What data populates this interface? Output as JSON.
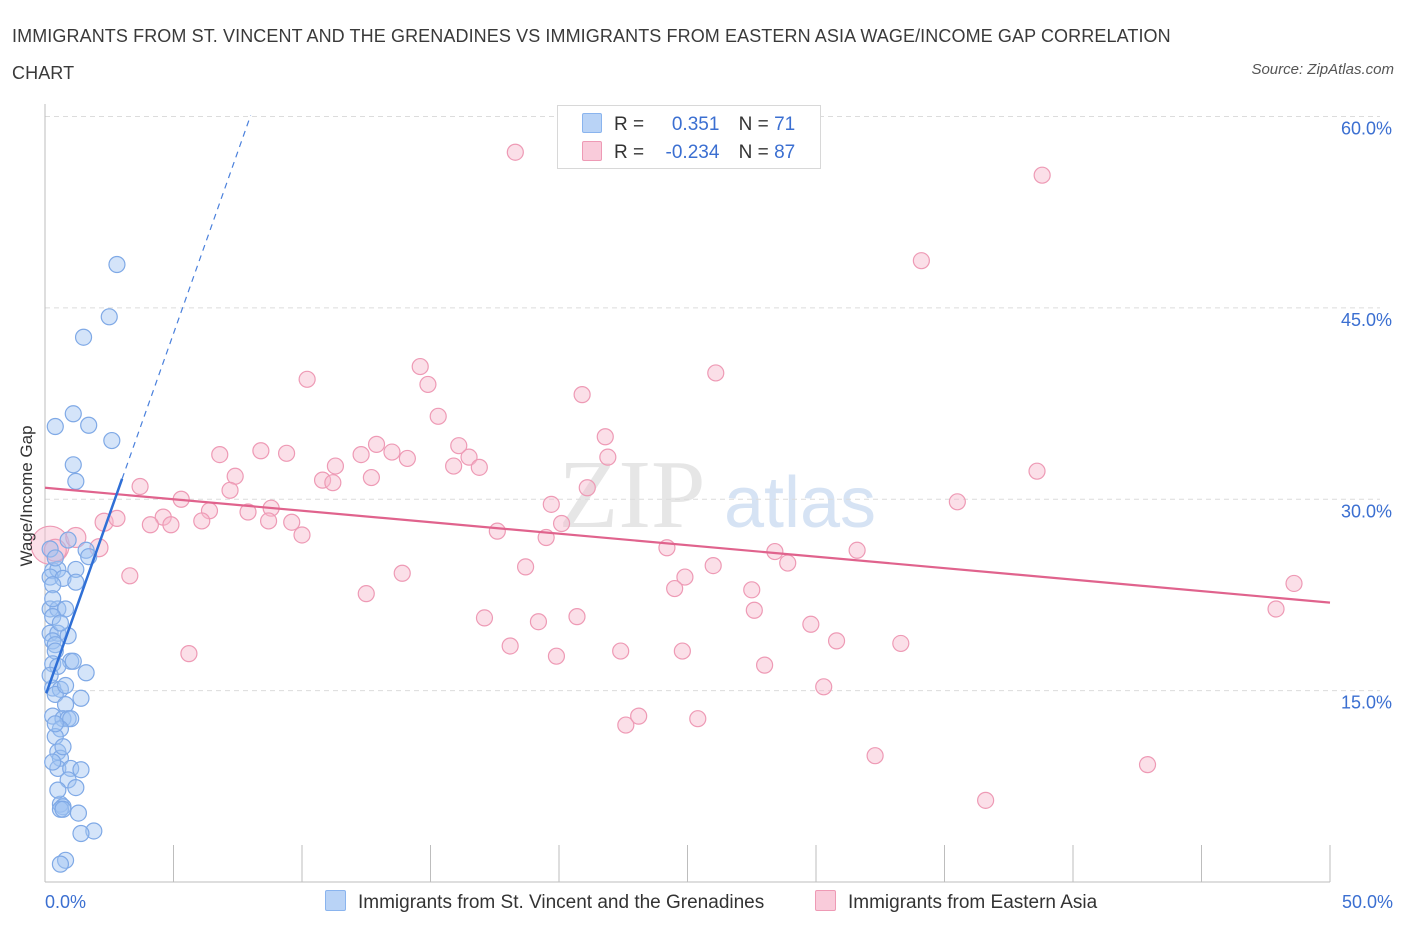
{
  "title": "IMMIGRANTS FROM ST. VINCENT AND THE GRENADINES VS IMMIGRANTS FROM EASTERN ASIA WAGE/INCOME GAP CORRELATION CHART",
  "source": "Source: ZipAtlas.com",
  "watermark": {
    "zip": "ZIP",
    "atlas": "atlas"
  },
  "colors": {
    "blue": "#8ab4ee",
    "blue_line": "#2f6fd6",
    "blue_fill": "#b9d3f6",
    "pink": "#ee9ab5",
    "pink_line": "#e0638d",
    "pink_fill": "#f9cbda",
    "accent_text": "#3b6fd1",
    "grid": "#dcdcdc"
  },
  "legend": {
    "rows": [
      {
        "r_label": "R =",
        "r_value": "0.351",
        "n_label": "N =",
        "n_value": "71"
      },
      {
        "r_label": "R =",
        "r_value": "-0.234",
        "n_label": "N =",
        "n_value": "87"
      }
    ]
  },
  "bottom_legend": {
    "series1": "Immigrants from St. Vincent and the Grenadines",
    "series2": "Immigrants from Eastern Asia"
  },
  "chart_data": {
    "type": "scatter",
    "title": "IMMIGRANTS FROM ST. VINCENT AND THE GRENADINES VS IMMIGRANTS FROM EASTERN ASIA WAGE/INCOME GAP CORRELATION CHART",
    "xlabel": "",
    "ylabel": "Wage/Income Gap",
    "xlim": [
      0,
      50
    ],
    "ylim": [
      0,
      60
    ],
    "x_tick_labels": [
      "0.0%",
      "50.0%"
    ],
    "y_ticks": [
      15,
      30,
      45,
      60
    ],
    "y_tick_labels": [
      "15.0%",
      "30.0%",
      "45.0%",
      "60.0%"
    ],
    "grid": true,
    "series": [
      {
        "name": "Immigrants from St. Vincent and the Grenadines",
        "color": "#8ab4ee",
        "trend": {
          "x1": 0.05,
          "y1": 14.8,
          "x2": 3.0,
          "y2": 31.6,
          "dash_to_x": 8.0
        },
        "points": [
          [
            2.8,
            48.4
          ],
          [
            2.5,
            44.3
          ],
          [
            1.5,
            42.7
          ],
          [
            1.1,
            36.7
          ],
          [
            0.4,
            35.7
          ],
          [
            1.7,
            35.8
          ],
          [
            2.6,
            34.6
          ],
          [
            1.1,
            32.7
          ],
          [
            1.2,
            31.4
          ],
          [
            1.6,
            26.0
          ],
          [
            1.7,
            25.5
          ],
          [
            0.3,
            24.4
          ],
          [
            0.5,
            24.5
          ],
          [
            1.2,
            24.5
          ],
          [
            0.2,
            23.9
          ],
          [
            0.7,
            23.8
          ],
          [
            1.2,
            23.5
          ],
          [
            0.3,
            23.3
          ],
          [
            0.2,
            21.4
          ],
          [
            0.5,
            21.4
          ],
          [
            0.8,
            21.4
          ],
          [
            0.3,
            20.8
          ],
          [
            0.2,
            19.5
          ],
          [
            0.5,
            19.5
          ],
          [
            0.9,
            19.3
          ],
          [
            0.3,
            18.9
          ],
          [
            0.4,
            18.6
          ],
          [
            0.4,
            18.1
          ],
          [
            0.3,
            17.1
          ],
          [
            1.0,
            17.3
          ],
          [
            1.1,
            17.3
          ],
          [
            0.5,
            16.9
          ],
          [
            1.6,
            16.4
          ],
          [
            0.3,
            15.2
          ],
          [
            0.6,
            15.1
          ],
          [
            0.4,
            14.7
          ],
          [
            1.4,
            14.4
          ],
          [
            0.8,
            13.9
          ],
          [
            0.3,
            13.0
          ],
          [
            0.7,
            12.8
          ],
          [
            0.9,
            12.8
          ],
          [
            1.0,
            12.8
          ],
          [
            0.6,
            12.0
          ],
          [
            0.4,
            11.4
          ],
          [
            0.5,
            10.2
          ],
          [
            0.6,
            9.7
          ],
          [
            0.5,
            8.9
          ],
          [
            1.0,
            8.9
          ],
          [
            1.4,
            8.8
          ],
          [
            0.9,
            8.0
          ],
          [
            0.6,
            6.1
          ],
          [
            0.7,
            5.9
          ],
          [
            0.6,
            5.7
          ],
          [
            0.7,
            5.7
          ],
          [
            1.3,
            5.4
          ],
          [
            1.9,
            4.0
          ],
          [
            1.4,
            3.8
          ],
          [
            0.8,
            1.7
          ],
          [
            0.6,
            1.4
          ],
          [
            0.2,
            26.1
          ],
          [
            0.4,
            25.4
          ],
          [
            0.9,
            26.8
          ],
          [
            0.3,
            22.2
          ],
          [
            0.6,
            20.3
          ],
          [
            0.8,
            15.4
          ],
          [
            0.2,
            16.2
          ],
          [
            0.4,
            12.4
          ],
          [
            0.7,
            10.6
          ],
          [
            1.2,
            7.4
          ],
          [
            0.3,
            9.4
          ],
          [
            0.5,
            7.2
          ]
        ]
      },
      {
        "name": "Immigrants from Eastern Asia",
        "color": "#ee9ab5",
        "trend": {
          "x1": 0,
          "y1": 30.9,
          "x2": 50,
          "y2": 21.9
        },
        "points": [
          [
            0.2,
            26.4,
            19
          ],
          [
            0.4,
            26.0,
            11
          ],
          [
            1.2,
            27.0,
            10
          ],
          [
            2.1,
            26.2,
            9
          ],
          [
            2.3,
            28.2,
            9
          ],
          [
            2.8,
            28.5,
            8
          ],
          [
            18.3,
            57.2,
            8
          ],
          [
            38.8,
            55.4,
            8
          ],
          [
            34.1,
            48.7,
            8
          ],
          [
            10.2,
            39.4,
            8
          ],
          [
            14.6,
            40.4,
            8
          ],
          [
            14.9,
            39.0,
            8
          ],
          [
            15.3,
            36.5,
            8
          ],
          [
            20.9,
            38.2,
            8
          ],
          [
            26.1,
            39.9,
            8
          ],
          [
            6.8,
            33.5,
            8
          ],
          [
            8.4,
            33.8,
            8
          ],
          [
            9.4,
            33.6,
            8
          ],
          [
            11.3,
            32.6,
            8
          ],
          [
            12.3,
            33.5,
            8
          ],
          [
            12.9,
            34.3,
            8
          ],
          [
            13.5,
            33.7,
            8
          ],
          [
            14.1,
            33.2,
            8
          ],
          [
            16.1,
            34.2,
            8
          ],
          [
            16.5,
            33.3,
            8
          ],
          [
            15.9,
            32.6,
            8
          ],
          [
            16.9,
            32.5,
            8
          ],
          [
            21.8,
            34.9,
            8
          ],
          [
            21.9,
            33.3,
            8
          ],
          [
            10.8,
            31.5,
            8
          ],
          [
            11.2,
            31.3,
            8
          ],
          [
            12.7,
            31.7,
            8
          ],
          [
            7.4,
            31.8,
            8
          ],
          [
            7.2,
            30.7,
            8
          ],
          [
            3.7,
            31.0,
            8
          ],
          [
            5.3,
            30.0,
            8
          ],
          [
            6.4,
            29.1,
            8
          ],
          [
            7.9,
            29.0,
            8
          ],
          [
            8.8,
            29.3,
            8
          ],
          [
            4.6,
            28.6,
            8
          ],
          [
            4.1,
            28.0,
            8
          ],
          [
            6.1,
            28.3,
            8
          ],
          [
            4.9,
            28.0,
            8
          ],
          [
            9.6,
            28.2,
            8
          ],
          [
            10.0,
            27.2,
            8
          ],
          [
            19.7,
            29.6,
            8
          ],
          [
            21.1,
            30.9,
            8
          ],
          [
            35.5,
            29.8,
            8
          ],
          [
            38.6,
            32.2,
            8
          ],
          [
            17.6,
            27.5,
            8
          ],
          [
            19.5,
            27.0,
            8
          ],
          [
            28.4,
            25.9,
            8
          ],
          [
            18.7,
            24.7,
            8
          ],
          [
            28.9,
            25.0,
            8
          ],
          [
            31.6,
            26.0,
            8
          ],
          [
            26.0,
            24.8,
            8
          ],
          [
            24.9,
            23.9,
            8
          ],
          [
            27.5,
            22.9,
            8
          ],
          [
            3.3,
            24.0,
            8
          ],
          [
            12.5,
            22.6,
            8
          ],
          [
            13.9,
            24.2,
            8
          ],
          [
            24.5,
            23.0,
            8
          ],
          [
            17.1,
            20.7,
            8
          ],
          [
            19.2,
            20.4,
            8
          ],
          [
            20.7,
            20.8,
            8
          ],
          [
            27.6,
            21.3,
            8
          ],
          [
            29.8,
            20.2,
            8
          ],
          [
            30.8,
            18.9,
            8
          ],
          [
            33.3,
            18.7,
            8
          ],
          [
            18.1,
            18.5,
            8
          ],
          [
            19.9,
            17.7,
            8
          ],
          [
            22.4,
            18.1,
            8
          ],
          [
            24.8,
            18.1,
            8
          ],
          [
            5.6,
            17.9,
            8
          ],
          [
            28.0,
            17.0,
            8
          ],
          [
            30.3,
            15.3,
            8
          ],
          [
            22.6,
            12.3,
            8
          ],
          [
            23.1,
            13.0,
            8
          ],
          [
            25.4,
            12.8,
            8
          ],
          [
            32.3,
            9.9,
            8
          ],
          [
            42.9,
            9.2,
            8
          ],
          [
            36.6,
            6.4,
            8
          ],
          [
            47.9,
            21.4,
            8
          ],
          [
            48.6,
            23.4,
            8
          ],
          [
            20.1,
            28.1,
            8
          ],
          [
            8.7,
            28.3,
            8
          ],
          [
            24.2,
            26.2,
            8
          ]
        ]
      }
    ]
  }
}
